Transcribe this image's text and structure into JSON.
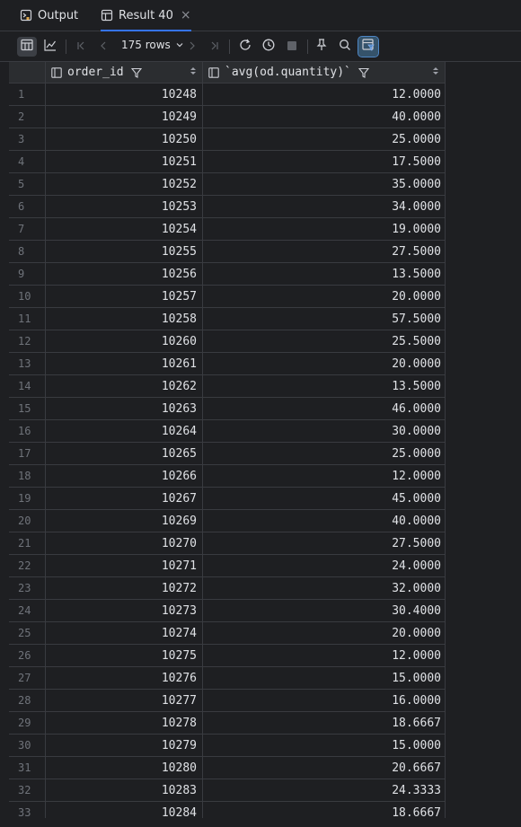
{
  "tabs": [
    {
      "label": "Output",
      "icon": "output-icon",
      "active": false
    },
    {
      "label": "Result 40",
      "icon": "table-icon",
      "active": true,
      "close": "×"
    }
  ],
  "toolbar": {
    "rows_label": "175 rows"
  },
  "columns": [
    {
      "label": "order_id"
    },
    {
      "label": "`avg(od.quantity)`"
    }
  ],
  "rows": [
    {
      "n": "1",
      "order_id": "10248",
      "avg": "12.0000"
    },
    {
      "n": "2",
      "order_id": "10249",
      "avg": "40.0000"
    },
    {
      "n": "3",
      "order_id": "10250",
      "avg": "25.0000"
    },
    {
      "n": "4",
      "order_id": "10251",
      "avg": "17.5000"
    },
    {
      "n": "5",
      "order_id": "10252",
      "avg": "35.0000"
    },
    {
      "n": "6",
      "order_id": "10253",
      "avg": "34.0000"
    },
    {
      "n": "7",
      "order_id": "10254",
      "avg": "19.0000"
    },
    {
      "n": "8",
      "order_id": "10255",
      "avg": "27.5000"
    },
    {
      "n": "9",
      "order_id": "10256",
      "avg": "13.5000"
    },
    {
      "n": "10",
      "order_id": "10257",
      "avg": "20.0000"
    },
    {
      "n": "11",
      "order_id": "10258",
      "avg": "57.5000"
    },
    {
      "n": "12",
      "order_id": "10260",
      "avg": "25.5000"
    },
    {
      "n": "13",
      "order_id": "10261",
      "avg": "20.0000"
    },
    {
      "n": "14",
      "order_id": "10262",
      "avg": "13.5000"
    },
    {
      "n": "15",
      "order_id": "10263",
      "avg": "46.0000"
    },
    {
      "n": "16",
      "order_id": "10264",
      "avg": "30.0000"
    },
    {
      "n": "17",
      "order_id": "10265",
      "avg": "25.0000"
    },
    {
      "n": "18",
      "order_id": "10266",
      "avg": "12.0000"
    },
    {
      "n": "19",
      "order_id": "10267",
      "avg": "45.0000"
    },
    {
      "n": "20",
      "order_id": "10269",
      "avg": "40.0000"
    },
    {
      "n": "21",
      "order_id": "10270",
      "avg": "27.5000"
    },
    {
      "n": "22",
      "order_id": "10271",
      "avg": "24.0000"
    },
    {
      "n": "23",
      "order_id": "10272",
      "avg": "32.0000"
    },
    {
      "n": "24",
      "order_id": "10273",
      "avg": "30.4000"
    },
    {
      "n": "25",
      "order_id": "10274",
      "avg": "20.0000"
    },
    {
      "n": "26",
      "order_id": "10275",
      "avg": "12.0000"
    },
    {
      "n": "27",
      "order_id": "10276",
      "avg": "15.0000"
    },
    {
      "n": "28",
      "order_id": "10277",
      "avg": "16.0000"
    },
    {
      "n": "29",
      "order_id": "10278",
      "avg": "18.6667"
    },
    {
      "n": "30",
      "order_id": "10279",
      "avg": "15.0000"
    },
    {
      "n": "31",
      "order_id": "10280",
      "avg": "20.6667"
    },
    {
      "n": "32",
      "order_id": "10283",
      "avg": "24.3333"
    },
    {
      "n": "33",
      "order_id": "10284",
      "avg": "18.6667"
    }
  ],
  "colors": {
    "background": "#1e1f22",
    "header_bg": "#2b2d30",
    "grid_line": "#393b40",
    "accent": "#3574f0",
    "row_number": "#6f737a"
  }
}
